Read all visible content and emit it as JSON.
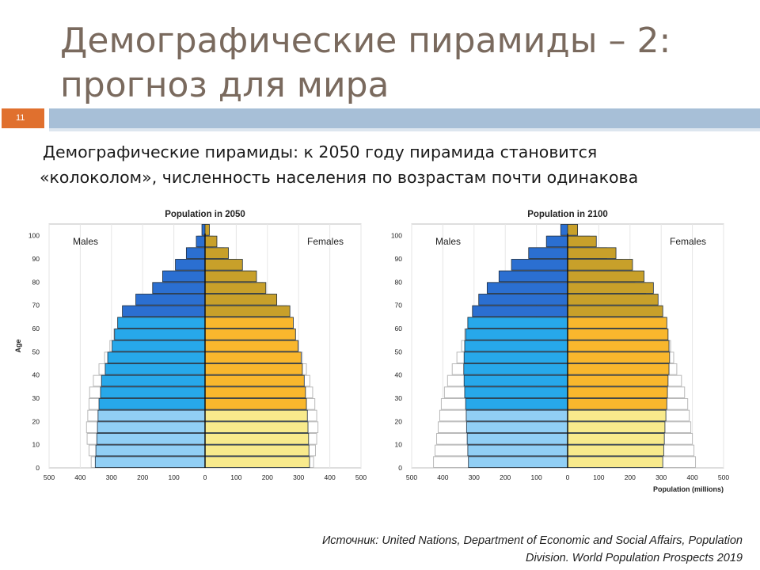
{
  "slide": {
    "title_line1": "Демографические пирамиды – 2:",
    "title_line2": "прогноз для мира",
    "number": "11",
    "lead_line1": "Демографические пирамиды: к 2050 году пирамида становится",
    "lead_line2": "«колоколом», численность населения по возрастам почти одинакова",
    "source_line1": "Источник: United Nations, Department of Economic and Social Affairs, Population",
    "source_line2": "Division. World Population Prospects 2019"
  },
  "colors": {
    "male_old": "#2b6fd1",
    "male_mid": "#27a8ea",
    "male_young": "#91cff5",
    "female_old": "#c8a02a",
    "female_mid": "#f9b72d",
    "female_young": "#f8ea8c",
    "outline_prev": "#b9b9b9"
  },
  "chart_data": [
    {
      "type": "population-pyramid",
      "title": "Population in 2050",
      "ylabel": "Age",
      "xlabel": "",
      "left_label": "Males",
      "right_label": "Females",
      "xlim": [
        -500,
        500
      ],
      "x_ticks": [
        500,
        400,
        300,
        200,
        100,
        0,
        100,
        200,
        300,
        400,
        500
      ],
      "y_ticks": [
        0,
        10,
        20,
        30,
        40,
        50,
        60,
        70,
        80,
        90,
        100
      ],
      "age_groups": [
        "0-4",
        "5-9",
        "10-14",
        "15-19",
        "20-24",
        "25-29",
        "30-34",
        "35-39",
        "40-44",
        "45-49",
        "50-54",
        "55-59",
        "60-64",
        "65-69",
        "70-74",
        "75-79",
        "80-84",
        "85-89",
        "90-94",
        "95-99",
        "100+"
      ],
      "males": [
        352,
        350,
        347,
        345,
        343,
        340,
        335,
        332,
        320,
        312,
        298,
        290,
        280,
        265,
        222,
        168,
        136,
        95,
        60,
        28,
        10
      ],
      "females": [
        335,
        333,
        332,
        330,
        328,
        325,
        322,
        318,
        312,
        308,
        298,
        290,
        283,
        272,
        230,
        195,
        165,
        120,
        75,
        38,
        14
      ],
      "males_reference": [
        365,
        372,
        378,
        380,
        376,
        372,
        370,
        358,
        340,
        322,
        305,
        292,
        280,
        262,
        215,
        168,
        130,
        90,
        52,
        22,
        5
      ],
      "females_reference": [
        348,
        354,
        358,
        362,
        358,
        352,
        345,
        336,
        325,
        312,
        300,
        290,
        278,
        262,
        225,
        185,
        148,
        100,
        60,
        25,
        6
      ]
    },
    {
      "type": "population-pyramid",
      "title": "Population in 2100",
      "ylabel": "",
      "xlabel": "Population (millions)",
      "left_label": "Males",
      "right_label": "Females",
      "xlim": [
        -500,
        500
      ],
      "x_ticks": [
        500,
        400,
        300,
        200,
        100,
        0,
        100,
        200,
        300,
        400,
        500
      ],
      "y_ticks": [
        0,
        10,
        20,
        30,
        40,
        50,
        60,
        70,
        80,
        90,
        100
      ],
      "age_groups": [
        "0-4",
        "5-9",
        "10-14",
        "15-19",
        "20-24",
        "25-29",
        "30-34",
        "35-39",
        "40-44",
        "45-49",
        "50-54",
        "55-59",
        "60-64",
        "65-69",
        "70-74",
        "75-79",
        "80-84",
        "85-89",
        "90-94",
        "95-99",
        "100+"
      ],
      "males": [
        318,
        320,
        322,
        324,
        325,
        327,
        330,
        332,
        333,
        332,
        330,
        327,
        320,
        305,
        285,
        258,
        220,
        180,
        125,
        68,
        22
      ],
      "females": [
        305,
        308,
        310,
        312,
        315,
        318,
        320,
        322,
        325,
        327,
        325,
        322,
        318,
        305,
        290,
        275,
        245,
        208,
        155,
        92,
        32
      ],
      "males_reference": [
        430,
        425,
        420,
        415,
        410,
        405,
        395,
        385,
        370,
        355,
        340,
        330,
        320,
        305,
        282,
        255,
        215,
        178,
        122,
        66,
        20
      ],
      "females_reference": [
        410,
        405,
        400,
        395,
        390,
        385,
        375,
        365,
        350,
        340,
        330,
        320,
        310,
        295,
        275,
        250,
        215,
        175,
        125,
        70,
        25
      ]
    }
  ]
}
